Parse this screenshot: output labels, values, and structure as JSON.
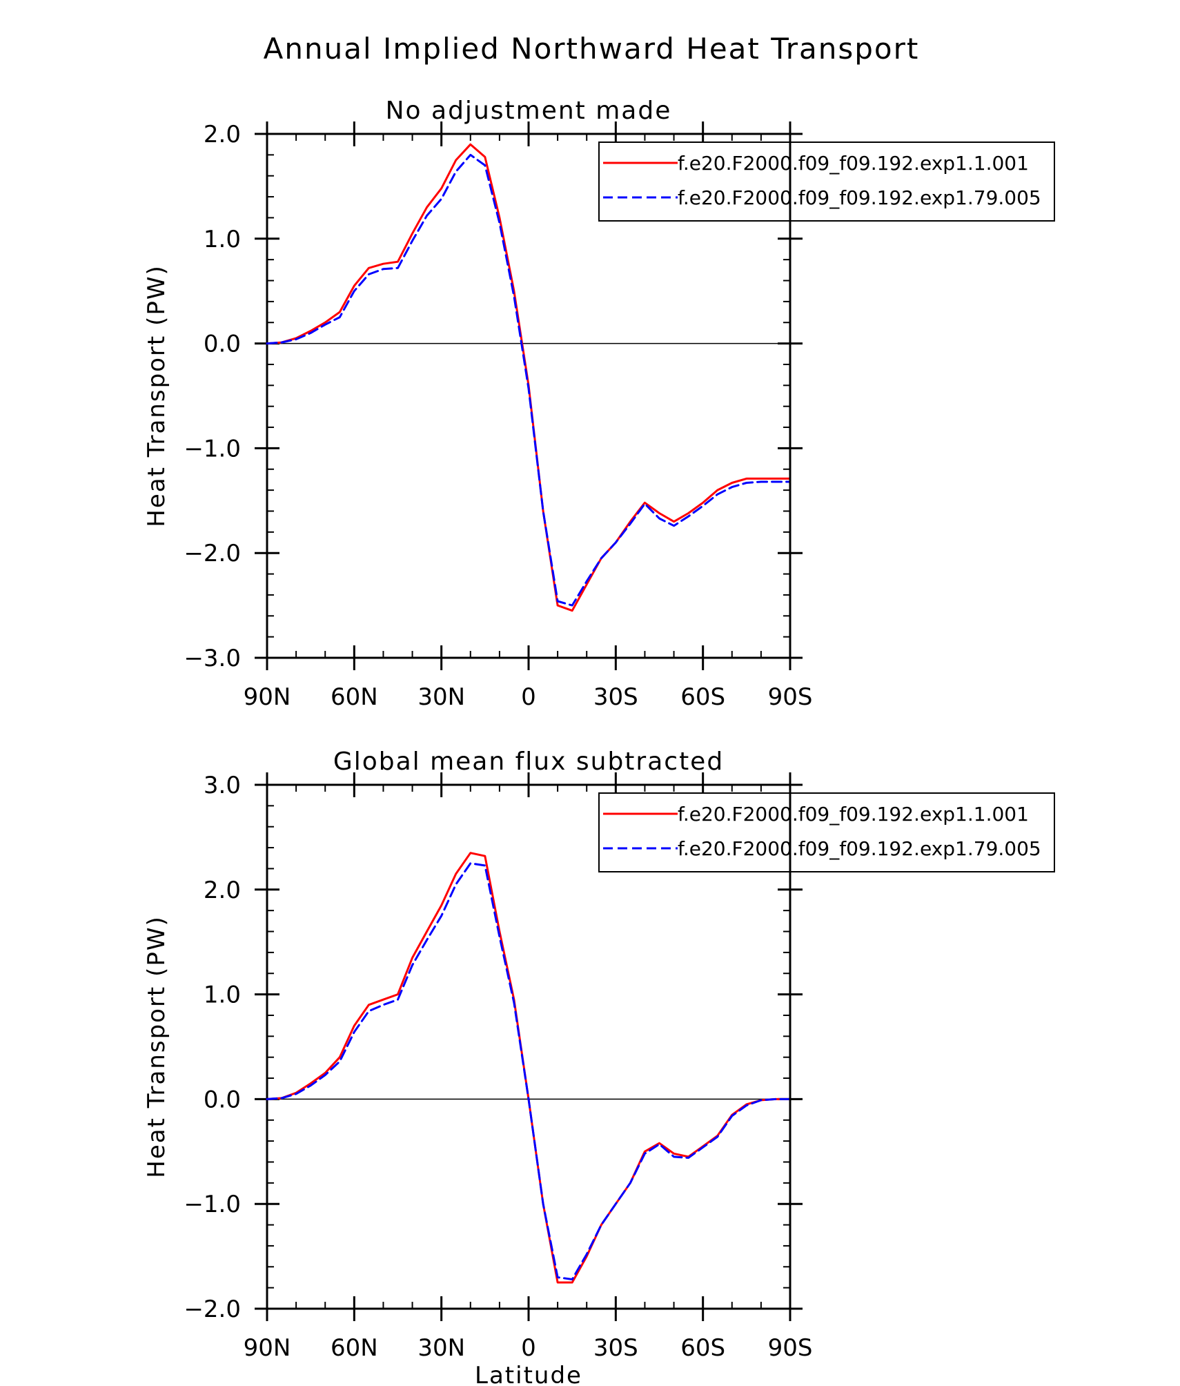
{
  "figure": {
    "title": "Annual Implied Northward Heat Transport"
  },
  "chart_data": [
    {
      "type": "line",
      "title": "No adjustment made",
      "xlabel": "",
      "ylabel": "Heat Transport (PW)",
      "xlim": [
        90,
        -90
      ],
      "ylim": [
        -3.0,
        2.0
      ],
      "xticks": [
        {
          "value": 90,
          "label": "90N"
        },
        {
          "value": 60,
          "label": "60N"
        },
        {
          "value": 30,
          "label": "30N"
        },
        {
          "value": 0,
          "label": "0"
        },
        {
          "value": -30,
          "label": "30S"
        },
        {
          "value": -60,
          "label": "60S"
        },
        {
          "value": -90,
          "label": "90S"
        }
      ],
      "yticks": [
        {
          "value": 2.0,
          "label": "2.0"
        },
        {
          "value": 1.0,
          "label": "1.0"
        },
        {
          "value": 0.0,
          "label": "0.0"
        },
        {
          "value": -1.0,
          "label": "−1.0"
        },
        {
          "value": -2.0,
          "label": "−2.0"
        },
        {
          "value": -3.0,
          "label": "−3.0"
        }
      ],
      "grid": false,
      "legend": "top-right",
      "x": [
        90,
        85,
        80,
        75,
        70,
        65,
        60,
        55,
        50,
        45,
        40,
        35,
        30,
        25,
        20,
        15,
        10,
        5,
        0,
        -5,
        -10,
        -15,
        -20,
        -25,
        -30,
        -35,
        -40,
        -45,
        -50,
        -55,
        -60,
        -65,
        -70,
        -75,
        -80,
        -85,
        -90
      ],
      "series": [
        {
          "name": "f.e20.F2000.f09_f09.192.exp1.1.001",
          "color": "#ff0000",
          "dash": "solid",
          "values": [
            0.0,
            0.01,
            0.05,
            0.12,
            0.2,
            0.3,
            0.55,
            0.72,
            0.76,
            0.78,
            1.05,
            1.3,
            1.48,
            1.75,
            1.9,
            1.78,
            1.2,
            0.5,
            -0.4,
            -1.6,
            -2.5,
            -2.55,
            -2.3,
            -2.05,
            -1.9,
            -1.7,
            -1.52,
            -1.62,
            -1.7,
            -1.62,
            -1.52,
            -1.4,
            -1.33,
            -1.29,
            -1.29,
            -1.29,
            -1.29
          ]
        },
        {
          "name": "f.e20.F2000.f09_f09.192.exp1.79.005",
          "color": "#0000ff",
          "dash": "dashed",
          "values": [
            0.0,
            0.01,
            0.04,
            0.1,
            0.18,
            0.25,
            0.5,
            0.66,
            0.71,
            0.72,
            0.98,
            1.22,
            1.38,
            1.64,
            1.8,
            1.7,
            1.15,
            0.45,
            -0.43,
            -1.6,
            -2.46,
            -2.5,
            -2.27,
            -2.05,
            -1.9,
            -1.72,
            -1.53,
            -1.67,
            -1.74,
            -1.65,
            -1.55,
            -1.44,
            -1.37,
            -1.33,
            -1.32,
            -1.32,
            -1.32
          ]
        }
      ]
    },
    {
      "type": "line",
      "title": "Global mean flux subtracted",
      "xlabel": "Latitude",
      "ylabel": "Heat Transport (PW)",
      "xlim": [
        90,
        -90
      ],
      "ylim": [
        -2.0,
        3.0
      ],
      "xticks": [
        {
          "value": 90,
          "label": "90N"
        },
        {
          "value": 60,
          "label": "60N"
        },
        {
          "value": 30,
          "label": "30N"
        },
        {
          "value": 0,
          "label": "0"
        },
        {
          "value": -30,
          "label": "30S"
        },
        {
          "value": -60,
          "label": "60S"
        },
        {
          "value": -90,
          "label": "90S"
        }
      ],
      "yticks": [
        {
          "value": 3.0,
          "label": "3.0"
        },
        {
          "value": 2.0,
          "label": "2.0"
        },
        {
          "value": 1.0,
          "label": "1.0"
        },
        {
          "value": 0.0,
          "label": "0.0"
        },
        {
          "value": -1.0,
          "label": "−1.0"
        },
        {
          "value": -2.0,
          "label": "−2.0"
        }
      ],
      "grid": false,
      "legend": "top-right",
      "x": [
        90,
        85,
        80,
        75,
        70,
        65,
        60,
        55,
        50,
        45,
        40,
        35,
        30,
        25,
        20,
        15,
        10,
        5,
        0,
        -5,
        -10,
        -15,
        -20,
        -25,
        -30,
        -35,
        -40,
        -45,
        -50,
        -55,
        -60,
        -65,
        -70,
        -75,
        -80,
        -85,
        -90
      ],
      "series": [
        {
          "name": "f.e20.F2000.f09_f09.192.exp1.1.001",
          "color": "#ff0000",
          "dash": "solid",
          "values": [
            0.0,
            0.01,
            0.06,
            0.15,
            0.25,
            0.4,
            0.7,
            0.9,
            0.95,
            1.0,
            1.35,
            1.6,
            1.85,
            2.15,
            2.35,
            2.32,
            1.6,
            0.95,
            0.0,
            -1.0,
            -1.75,
            -1.75,
            -1.5,
            -1.2,
            -1.0,
            -0.8,
            -0.5,
            -0.42,
            -0.52,
            -0.55,
            -0.45,
            -0.35,
            -0.15,
            -0.05,
            -0.01,
            0.0,
            0.0
          ]
        },
        {
          "name": "f.e20.F2000.f09_f09.192.exp1.79.005",
          "color": "#0000ff",
          "dash": "dashed",
          "values": [
            0.0,
            0.01,
            0.05,
            0.13,
            0.23,
            0.36,
            0.64,
            0.84,
            0.9,
            0.95,
            1.28,
            1.52,
            1.75,
            2.05,
            2.25,
            2.23,
            1.55,
            0.92,
            0.0,
            -1.0,
            -1.7,
            -1.72,
            -1.48,
            -1.2,
            -1.0,
            -0.8,
            -0.52,
            -0.43,
            -0.55,
            -0.56,
            -0.46,
            -0.36,
            -0.16,
            -0.06,
            -0.01,
            0.0,
            0.0
          ]
        }
      ]
    }
  ]
}
